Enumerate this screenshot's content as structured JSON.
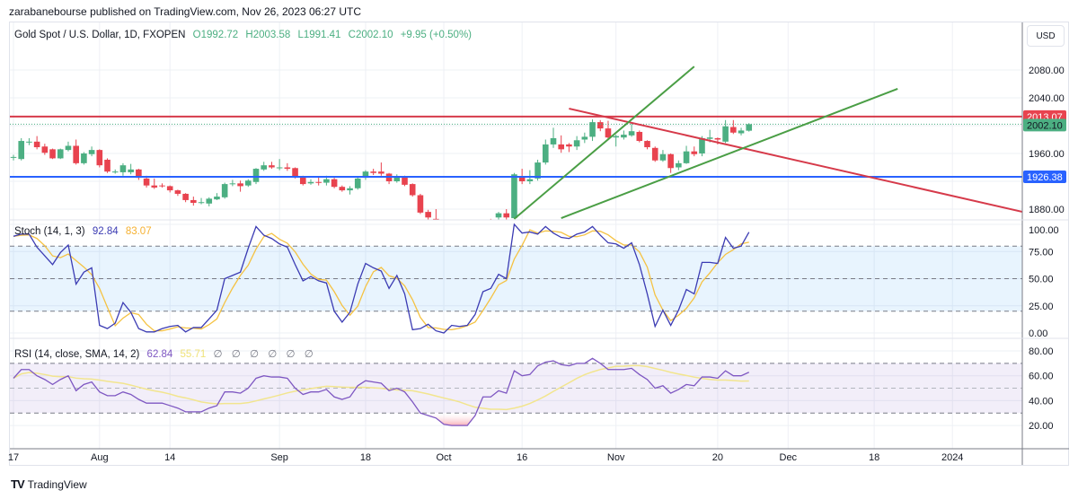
{
  "header": {
    "published": "zarabanebourse published on TradingView.com, Nov 26, 2023 06:27 UTC"
  },
  "legend": {
    "symbol": "Gold Spot / U.S. Dollar, 1D, FXOPEN",
    "open": "O1992.72",
    "high": "H2003.58",
    "low": "L1991.41",
    "close": "C2002.10",
    "change": "+9.95 (+0.50%)"
  },
  "currency_button": "USD",
  "stoch_legend": {
    "title": "Stoch (14, 1, 3)",
    "k": "92.84",
    "d": "83.07"
  },
  "rsi_legend": {
    "title": "RSI (14, close, SMA, 14, 2)",
    "rsi": "62.84",
    "ma": "55.71",
    "nulls": [
      "∅",
      "∅",
      "∅",
      "∅",
      "∅",
      "∅"
    ]
  },
  "footer": {
    "logo_text": "TradingView"
  },
  "colors": {
    "up": "#4caf82",
    "down": "#e8434f",
    "stoch_k": "#3b3bb3",
    "stoch_d": "#f5c242",
    "rsi": "#7e57c2",
    "rsi_ma": "#f2e58e",
    "blue_line": "#2962ff",
    "red_line": "#d63a4a",
    "trend_green": "#4a9e45"
  },
  "chart_data": [
    {
      "type": "candlestick",
      "title": "Gold Spot / U.S. Dollar, 1D, FXOPEN",
      "y_ticks": [
        "2080.00",
        "2040.00",
        "1960.00",
        "1880.00"
      ],
      "x_ticks": [
        {
          "label": "17",
          "date": "2023-07-17"
        },
        {
          "label": "Aug",
          "date": "2023-08-01"
        },
        {
          "label": "14",
          "date": "2023-08-14"
        },
        {
          "label": "Sep",
          "date": "2023-09-01"
        },
        {
          "label": "18",
          "date": "2023-09-18"
        },
        {
          "label": "Oct",
          "date": "2023-10-02"
        },
        {
          "label": "16",
          "date": "2023-10-16"
        },
        {
          "label": "Nov",
          "date": "2023-11-01"
        },
        {
          "label": "20",
          "date": "2023-11-20"
        },
        {
          "label": "Dec",
          "date": "2023-12-01"
        },
        {
          "label": "18",
          "date": "2023-12-18"
        },
        {
          "label": "2024",
          "date": "2024-01-01"
        }
      ],
      "price_labels": [
        {
          "value": "2013.07",
          "color": "#e8434f"
        },
        {
          "value": "2002.10",
          "color": "#4caf82"
        },
        {
          "value": "1926.38",
          "color": "#2962ff"
        }
      ],
      "horizontal_lines": [
        {
          "price": 2013.07,
          "color": "#d63a4a"
        },
        {
          "price": 1926.38,
          "color": "#2962ff"
        }
      ],
      "trend_lines": [
        {
          "color": "#d63a4a",
          "from": [
            "2023-10-24",
            2024.5
          ],
          "to": [
            "2024-01-12",
            1876
          ]
        },
        {
          "color": "#4a9e45",
          "from": [
            "2023-10-13",
            1866
          ],
          "to": [
            "2023-11-15",
            2085
          ]
        },
        {
          "color": "#4a9e45",
          "from": [
            "2023-10-23",
            1867
          ],
          "to": [
            "2023-12-21",
            2053
          ]
        }
      ],
      "candles_columns": [
        "date",
        "open",
        "high",
        "low",
        "close"
      ],
      "candles": [
        [
          "2023-07-17",
          1955,
          1958,
          1950,
          1955
        ],
        [
          "2023-07-18",
          1952,
          1982,
          1950,
          1978
        ],
        [
          "2023-07-19",
          1977,
          1982,
          1972,
          1977
        ],
        [
          "2023-07-20",
          1977,
          1985,
          1966,
          1969
        ],
        [
          "2023-07-21",
          1970,
          1974,
          1958,
          1961
        ],
        [
          "2023-07-24",
          1966,
          1967,
          1952,
          1953
        ],
        [
          "2023-07-25",
          1953,
          1967,
          1952,
          1966
        ],
        [
          "2023-07-26",
          1965,
          1977,
          1963,
          1971
        ],
        [
          "2023-07-27",
          1971,
          1980,
          1944,
          1946
        ],
        [
          "2023-07-28",
          1946,
          1962,
          1944,
          1960
        ],
        [
          "2023-07-31",
          1959,
          1970,
          1956,
          1965
        ],
        [
          "2023-08-01",
          1965,
          1966,
          1940,
          1943
        ],
        [
          "2023-08-02",
          1951,
          1953,
          1932,
          1934
        ],
        [
          "2023-08-03",
          1934,
          1937,
          1931,
          1934
        ],
        [
          "2023-08-04",
          1933,
          1946,
          1928,
          1943
        ],
        [
          "2023-08-07",
          1933,
          1945,
          1930,
          1937
        ],
        [
          "2023-08-08",
          1937,
          1938,
          1922,
          1925
        ],
        [
          "2023-08-09",
          1924,
          1928,
          1911,
          1914
        ],
        [
          "2023-08-10",
          1914,
          1924,
          1909,
          1911
        ],
        [
          "2023-08-11",
          1914,
          1917,
          1911,
          1913
        ],
        [
          "2023-08-14",
          1913,
          1914,
          1904,
          1907
        ],
        [
          "2023-08-15",
          1907,
          1908,
          1899,
          1902
        ],
        [
          "2023-08-16",
          1902,
          1903,
          1890,
          1893
        ],
        [
          "2023-08-17",
          1893,
          1898,
          1885,
          1889
        ],
        [
          "2023-08-18",
          1889,
          1896,
          1887,
          1890
        ],
        [
          "2023-08-21",
          1888,
          1897,
          1884,
          1895
        ],
        [
          "2023-08-22",
          1894,
          1903,
          1893,
          1898
        ],
        [
          "2023-08-23",
          1897,
          1918,
          1895,
          1916
        ],
        [
          "2023-08-24",
          1916,
          1922,
          1913,
          1917
        ],
        [
          "2023-08-25",
          1917,
          1921,
          1905,
          1913
        ],
        [
          "2023-08-28",
          1914,
          1923,
          1912,
          1921
        ],
        [
          "2023-08-29",
          1919,
          1939,
          1916,
          1938
        ],
        [
          "2023-08-30",
          1937,
          1948,
          1935,
          1943
        ],
        [
          "2023-08-31",
          1943,
          1948,
          1938,
          1940
        ],
        [
          "2023-09-01",
          1940,
          1952,
          1936,
          1940
        ],
        [
          "2023-09-04",
          1940,
          1946,
          1935,
          1938
        ],
        [
          "2023-09-05",
          1939,
          1940,
          1924,
          1926
        ],
        [
          "2023-09-06",
          1926,
          1928,
          1914,
          1916
        ],
        [
          "2023-09-07",
          1917,
          1923,
          1915,
          1919
        ],
        [
          "2023-09-08",
          1919,
          1926,
          1914,
          1918
        ],
        [
          "2023-09-11",
          1918,
          1928,
          1914,
          1923
        ],
        [
          "2023-09-12",
          1923,
          1925,
          1910,
          1912
        ],
        [
          "2023-09-13",
          1912,
          1914,
          1905,
          1907
        ],
        [
          "2023-09-14",
          1907,
          1913,
          1901,
          1910
        ],
        [
          "2023-09-15",
          1910,
          1926,
          1908,
          1924
        ],
        [
          "2023-09-18",
          1925,
          1936,
          1922,
          1934
        ],
        [
          "2023-09-19",
          1934,
          1938,
          1929,
          1932
        ],
        [
          "2023-09-20",
          1934,
          1947,
          1928,
          1931
        ],
        [
          "2023-09-21",
          1931,
          1932,
          1916,
          1920
        ],
        [
          "2023-09-22",
          1920,
          1930,
          1918,
          1926
        ],
        [
          "2023-09-25",
          1927,
          1928,
          1913,
          1915
        ],
        [
          "2023-09-26",
          1916,
          1917,
          1898,
          1900
        ],
        [
          "2023-09-27",
          1900,
          1902,
          1873,
          1875
        ],
        [
          "2023-09-28",
          1876,
          1879,
          1858,
          1868
        ],
        [
          "2023-09-29",
          1866,
          1880,
          1845,
          1848
        ],
        [
          "2023-10-02",
          1848,
          1849,
          1825,
          1828
        ],
        [
          "2023-10-03",
          1828,
          1832,
          1816,
          1822
        ],
        [
          "2023-10-04",
          1822,
          1828,
          1817,
          1821
        ],
        [
          "2023-10-05",
          1821,
          1825,
          1813,
          1820
        ],
        [
          "2023-10-06",
          1820,
          1834,
          1810,
          1832
        ],
        [
          "2023-10-09",
          1833,
          1865,
          1832,
          1861
        ],
        [
          "2023-10-10",
          1861,
          1866,
          1857,
          1860
        ],
        [
          "2023-10-11",
          1868,
          1876,
          1864,
          1874
        ],
        [
          "2023-10-12",
          1874,
          1880,
          1865,
          1868
        ],
        [
          "2023-10-13",
          1867,
          1932,
          1866,
          1930
        ],
        [
          "2023-10-16",
          1926,
          1938,
          1916,
          1920
        ],
        [
          "2023-10-17",
          1920,
          1936,
          1916,
          1923
        ],
        [
          "2023-10-18",
          1924,
          1951,
          1921,
          1947
        ],
        [
          "2023-10-19",
          1947,
          1980,
          1944,
          1973
        ],
        [
          "2023-10-20",
          1973,
          1997,
          1968,
          1982
        ],
        [
          "2023-10-23",
          1973,
          1986,
          1961,
          1966
        ],
        [
          "2023-10-24",
          1973,
          1975,
          1962,
          1970
        ],
        [
          "2023-10-25",
          1970,
          1985,
          1965,
          1979
        ],
        [
          "2023-10-26",
          1980,
          1990,
          1975,
          1984
        ],
        [
          "2023-10-27",
          1984,
          2009,
          1978,
          2005
        ],
        [
          "2023-10-30",
          2005,
          2008,
          1992,
          1996
        ],
        [
          "2023-10-31",
          1996,
          2007,
          1979,
          1983
        ],
        [
          "2023-11-01",
          1983,
          1987,
          1970,
          1985
        ],
        [
          "2023-11-02",
          1983,
          1993,
          1980,
          1987
        ],
        [
          "2023-11-03",
          1986,
          2003,
          1984,
          1992
        ],
        [
          "2023-11-06",
          1991,
          1993,
          1976,
          1978
        ],
        [
          "2023-11-07",
          1978,
          1979,
          1966,
          1969
        ],
        [
          "2023-11-08",
          1968,
          1970,
          1948,
          1950
        ],
        [
          "2023-11-09",
          1950,
          1965,
          1948,
          1959
        ],
        [
          "2023-11-10",
          1959,
          1960,
          1932,
          1939
        ],
        [
          "2023-11-13",
          1940,
          1950,
          1936,
          1946
        ],
        [
          "2023-11-14",
          1946,
          1971,
          1945,
          1963
        ],
        [
          "2023-11-15",
          1963,
          1970,
          1956,
          1959
        ],
        [
          "2023-11-16",
          1960,
          1985,
          1956,
          1982
        ],
        [
          "2023-11-17",
          1981,
          1994,
          1976,
          1983
        ],
        [
          "2023-11-20",
          1982,
          1983,
          1973,
          1980
        ],
        [
          "2023-11-21",
          1977,
          2008,
          1975,
          1999
        ],
        [
          "2023-11-22",
          1998,
          2008,
          1988,
          1990
        ],
        [
          "2023-11-23",
          1989,
          1997,
          1986,
          1993
        ],
        [
          "2023-11-24",
          1992.72,
          2003.58,
          1991.41,
          2002.1
        ]
      ]
    },
    {
      "type": "line",
      "title": "Stoch (14, 1, 3)",
      "ylim": [
        0,
        100
      ],
      "y_ticks": [
        "100.00",
        "75.00",
        "50.00",
        "25.00",
        "0.00"
      ],
      "band": [
        20,
        80
      ],
      "series": [
        {
          "name": "%K",
          "values": [
            89,
            91,
            91,
            79,
            71,
            63,
            74,
            81,
            45,
            56,
            60,
            7,
            4,
            9,
            28,
            19,
            4,
            1,
            1,
            4,
            6,
            7,
            1,
            5,
            5,
            13,
            21,
            50,
            53,
            56,
            78,
            98,
            90,
            87,
            82,
            79,
            63,
            48,
            52,
            48,
            46,
            20,
            10,
            19,
            45,
            64,
            60,
            57,
            41,
            53,
            36,
            3,
            4,
            8,
            2,
            0,
            7,
            6,
            7,
            17,
            38,
            41,
            54,
            50,
            100,
            92,
            93,
            91,
            98,
            92,
            88,
            87,
            91,
            93,
            98,
            90,
            83,
            82,
            78,
            83,
            63,
            36,
            6,
            21,
            7,
            21,
            40,
            36,
            65,
            65,
            64,
            88,
            78,
            80,
            92.84
          ]
        }
      ]
    },
    {
      "type": "line",
      "title": "RSI (14, close, SMA, 14, 2)",
      "ylim": [
        10,
        85
      ],
      "y_ticks": [
        "80.00",
        "60.00",
        "40.00",
        "20.00"
      ],
      "band": [
        30,
        70
      ],
      "series": [
        {
          "name": "RSI",
          "values": [
            58,
            65,
            65,
            60,
            57,
            53,
            57,
            60,
            48,
            53,
            55,
            47,
            44,
            44,
            47,
            45,
            41,
            38,
            38,
            38,
            36,
            34,
            31,
            31,
            31,
            34,
            36,
            47,
            47,
            46,
            50,
            58,
            60,
            59,
            59,
            58,
            50,
            45,
            47,
            47,
            49,
            43,
            41,
            43,
            52,
            56,
            55,
            54,
            48,
            50,
            47,
            39,
            30,
            28,
            26,
            21,
            20,
            20,
            20,
            28,
            43,
            43,
            48,
            46,
            64,
            60,
            61,
            68,
            71,
            72,
            69,
            68,
            70,
            70,
            74,
            70,
            65,
            65,
            65,
            66,
            61,
            57,
            50,
            52,
            46,
            49,
            53,
            52,
            59,
            59,
            58,
            64,
            60,
            60,
            62.84
          ]
        }
      ]
    }
  ]
}
